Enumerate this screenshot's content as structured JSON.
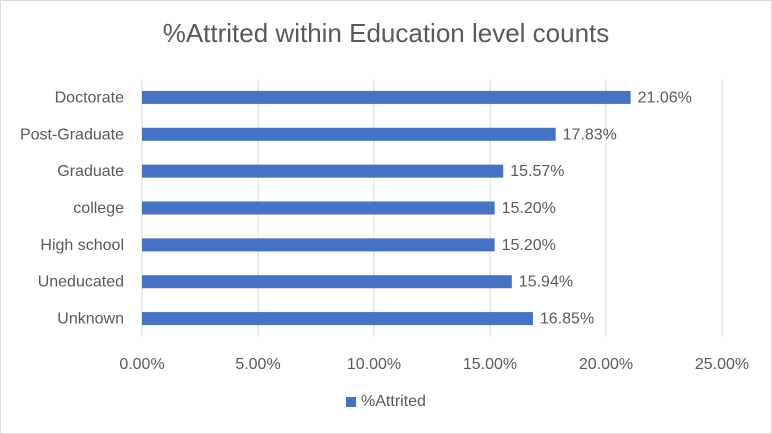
{
  "chart_data": {
    "type": "bar",
    "orientation": "horizontal",
    "title": "%Attrited within Education level counts",
    "categories": [
      "Doctorate",
      "Post-Graduate",
      "Graduate",
      "college",
      "High school",
      "Uneducated",
      "Unknown"
    ],
    "series": [
      {
        "name": "%Attrited",
        "values": [
          21.06,
          17.83,
          15.57,
          15.2,
          15.2,
          15.94,
          16.85
        ],
        "data_labels": [
          "21.06%",
          "17.83%",
          "15.57%",
          "15.20%",
          "15.20%",
          "15.94%",
          "16.85%"
        ]
      }
    ],
    "x_ticks": [
      0,
      5,
      10,
      15,
      20,
      25
    ],
    "x_tick_labels": [
      "0.00%",
      "5.00%",
      "10.00%",
      "15.00%",
      "20.00%",
      "25.00%"
    ],
    "xlim": [
      0,
      25
    ],
    "xlabel": "",
    "ylabel": "",
    "grid": "vertical",
    "legend_position": "bottom",
    "colors": {
      "bar": "#4472c4",
      "gridline": "#d9d9d9",
      "text": "#595959"
    }
  }
}
